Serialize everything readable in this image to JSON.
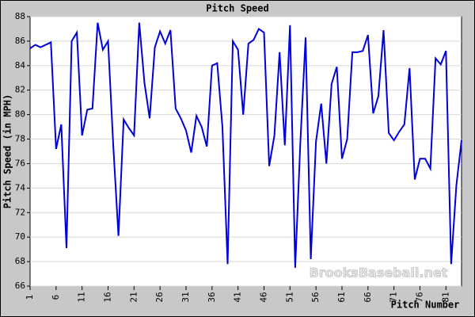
{
  "chart_data": {
    "type": "line",
    "title": "Pitch Speed",
    "x_label": "Pitch Number",
    "y_label": "Pitch Speed (in MPH)",
    "watermark": "BrooksBaseball.net",
    "x": [
      1,
      2,
      3,
      4,
      5,
      6,
      7,
      8,
      9,
      10,
      11,
      12,
      13,
      14,
      15,
      16,
      17,
      18,
      19,
      20,
      21,
      22,
      23,
      24,
      25,
      26,
      27,
      28,
      29,
      30,
      31,
      32,
      33,
      34,
      35,
      36,
      37,
      38,
      39,
      40,
      41,
      42,
      43,
      44,
      45,
      46,
      47,
      48,
      49,
      50,
      51,
      52,
      53,
      54,
      55,
      56,
      57,
      58,
      59,
      60,
      61,
      62,
      63,
      64,
      65,
      66,
      67,
      68,
      69,
      70,
      71,
      72,
      73,
      74,
      75,
      76,
      77,
      78,
      79,
      80,
      81,
      82,
      83,
      84
    ],
    "series": [
      {
        "name": "Pitch Speed",
        "color": "#0000dd",
        "values": [
          85.4,
          85.7,
          85.5,
          85.7,
          85.9,
          77.2,
          79.2,
          69.1,
          86.0,
          86.7,
          78.3,
          80.4,
          80.5,
          87.5,
          85.3,
          86.0,
          77.5,
          70.1,
          79.6,
          78.9,
          78.3,
          87.5,
          82.6,
          79.7,
          85.5,
          86.8,
          85.8,
          86.9,
          80.5,
          79.7,
          78.7,
          76.9,
          79.9,
          79.0,
          77.4,
          84.0,
          84.2,
          79.0,
          67.8,
          86.0,
          85.3,
          80.0,
          85.8,
          86.1,
          87.0,
          86.7,
          75.8,
          78.3,
          85.1,
          77.5,
          87.3,
          67.5,
          77.8,
          86.3,
          68.2,
          77.8,
          80.9,
          76.0,
          82.5,
          83.9,
          76.4,
          78.0,
          85.1,
          85.1,
          85.2,
          86.5,
          80.1,
          81.5,
          86.9,
          78.5,
          77.9,
          78.6,
          79.2,
          83.8,
          74.7,
          76.4,
          76.4,
          75.6,
          84.6,
          84.1,
          85.2,
          67.8,
          74.2,
          77.9
        ]
      }
    ],
    "xlim": [
      1,
      84
    ],
    "ylim": [
      66,
      88
    ],
    "xticks": [
      1,
      6,
      11,
      16,
      21,
      26,
      31,
      36,
      41,
      46,
      51,
      56,
      61,
      66,
      71,
      76,
      81
    ],
    "yticks": [
      66,
      68,
      70,
      72,
      74,
      76,
      78,
      80,
      82,
      84,
      86,
      88
    ],
    "grid": true
  }
}
